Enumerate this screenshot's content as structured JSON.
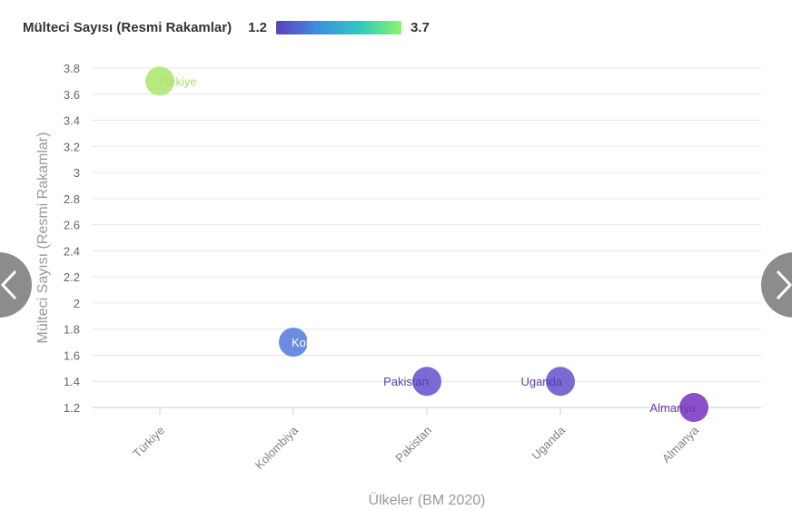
{
  "legend": {
    "title": "Mülteci Sayısı (Resmi Rakamlar)",
    "min_label": "1.2",
    "max_label": "3.7"
  },
  "chart_data": {
    "type": "scatter",
    "xlabel": "Ülkeler (BM 2020)",
    "ylabel": "Mülteci Sayısı (Resmi Rakamlar)",
    "categories": [
      "Türkiye",
      "Kolombiya",
      "Pakistan",
      "Uganda",
      "Almanya"
    ],
    "values": [
      3.7,
      1.7,
      1.4,
      1.4,
      1.2
    ],
    "point_labels": [
      "Türkiye",
      "Kolombiya",
      "Pakistan",
      "Uganda",
      "Almanya"
    ],
    "ylim": [
      1.2,
      3.8
    ],
    "yticks": [
      "1.2",
      "1.4",
      "1.6",
      "1.8",
      "2",
      "2.2",
      "2.4",
      "2.6",
      "2.8",
      "3",
      "3.2",
      "3.4",
      "3.6",
      "3.8"
    ],
    "grid": true,
    "colorscale": [
      "#5b3fbf",
      "#3f8ee0",
      "#2ec9c0",
      "#8af56a"
    ],
    "colors": [
      "#b5ea80",
      "#6b8de0",
      "#7b6ad3",
      "#7b6ad3",
      "#8a4fc9"
    ],
    "label_colors": [
      "#a8e070",
      "#ffffff",
      "#5a3cb0",
      "#5a3cb0",
      "#6a3bb0"
    ]
  },
  "nav": {
    "prev_icon": "chevron-left-icon",
    "next_icon": "chevron-right-icon"
  }
}
